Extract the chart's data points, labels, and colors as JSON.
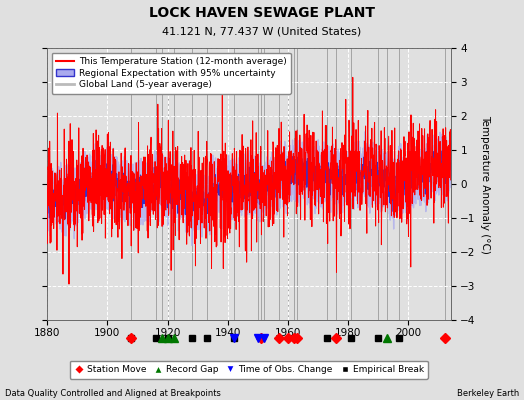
{
  "title": "LOCK HAVEN SEWAGE PLANT",
  "subtitle": "41.121 N, 77.437 W (United States)",
  "ylabel": "Temperature Anomaly (°C)",
  "xlabel_left": "Data Quality Controlled and Aligned at Breakpoints",
  "xlabel_right": "Berkeley Earth",
  "year_start": 1880,
  "year_end": 2014,
  "ylim": [
    -4,
    4
  ],
  "yticks": [
    -4,
    -3,
    -2,
    -1,
    0,
    1,
    2,
    3,
    4
  ],
  "xticks": [
    1880,
    1900,
    1920,
    1940,
    1960,
    1980,
    2000
  ],
  "bg_color": "#e0e0e0",
  "plot_bg_color": "#e0e0e0",
  "grid_color": "#ffffff",
  "station_color": "#ff0000",
  "regional_color": "#3333cc",
  "regional_fill": "#aaaaee",
  "global_color": "#bbbbbb",
  "legend_labels": [
    "This Temperature Station (12-month average)",
    "Regional Expectation with 95% uncertainty",
    "Global Land (5-year average)"
  ],
  "marker_events": {
    "station_move": {
      "years": [
        1908,
        1951,
        1957,
        1960,
        1962,
        1963,
        1976,
        2012
      ],
      "color": "#ff0000",
      "marker": "D",
      "label": "Station Move"
    },
    "record_gap": {
      "years": [
        1918,
        1920,
        1922,
        1993
      ],
      "color": "#007700",
      "marker": "^",
      "label": "Record Gap"
    },
    "obs_change": {
      "years": [
        1942,
        1950,
        1952
      ],
      "color": "#0000ff",
      "marker": "v",
      "label": "Time of Obs. Change"
    },
    "emp_break": {
      "years": [
        1908,
        1916,
        1920,
        1928,
        1933,
        1942,
        1973,
        1981,
        1990,
        1997
      ],
      "color": "#000000",
      "marker": "s",
      "label": "Empirical Break"
    }
  }
}
